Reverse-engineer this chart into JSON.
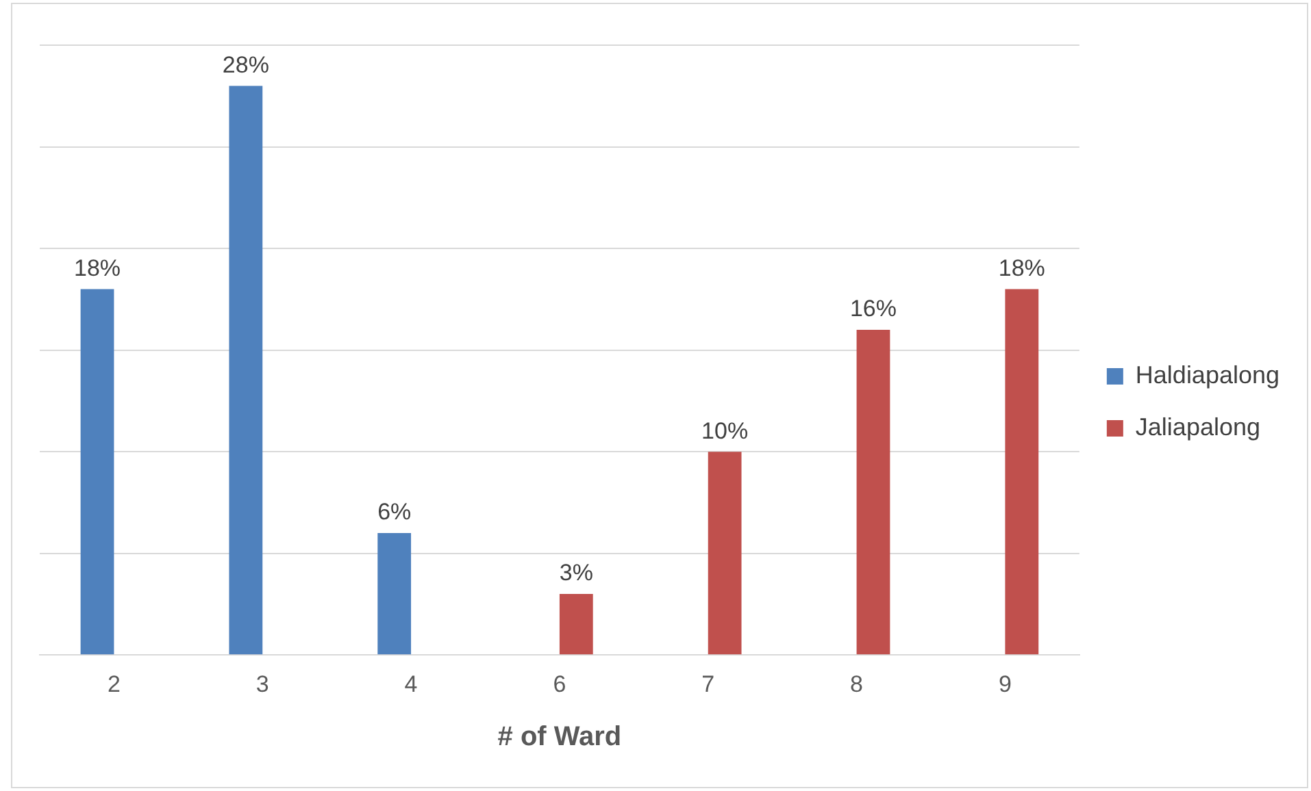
{
  "chart_data": {
    "type": "bar",
    "xlabel": "# of Ward",
    "categories": [
      "2",
      "3",
      "4",
      "6",
      "7",
      "8",
      "9"
    ],
    "series": [
      {
        "name": "Haldiapalong",
        "color": "#4f81bd",
        "values": [
          18,
          28,
          6,
          null,
          null,
          null,
          null
        ],
        "value_labels": [
          "18%",
          "28%",
          "6%",
          null,
          null,
          null,
          null
        ]
      },
      {
        "name": "Jaliapalong",
        "color": "#c0504d",
        "values": [
          null,
          null,
          null,
          3,
          10,
          16,
          18
        ],
        "value_labels": [
          null,
          null,
          null,
          "3%",
          "10%",
          "16%",
          "18%"
        ]
      }
    ],
    "ylim": [
      0,
      30
    ],
    "yticks": [
      {
        "value": 0,
        "label": null
      },
      {
        "value": 5,
        "label": null
      },
      {
        "value": 10,
        "label": null
      },
      {
        "value": 15,
        "label": null
      },
      {
        "value": 20,
        "label": null
      },
      {
        "value": 25,
        "label": null
      },
      {
        "value": 30,
        "label": null
      }
    ],
    "tick_labels": "x",
    "grid": "y",
    "legend": "right"
  }
}
